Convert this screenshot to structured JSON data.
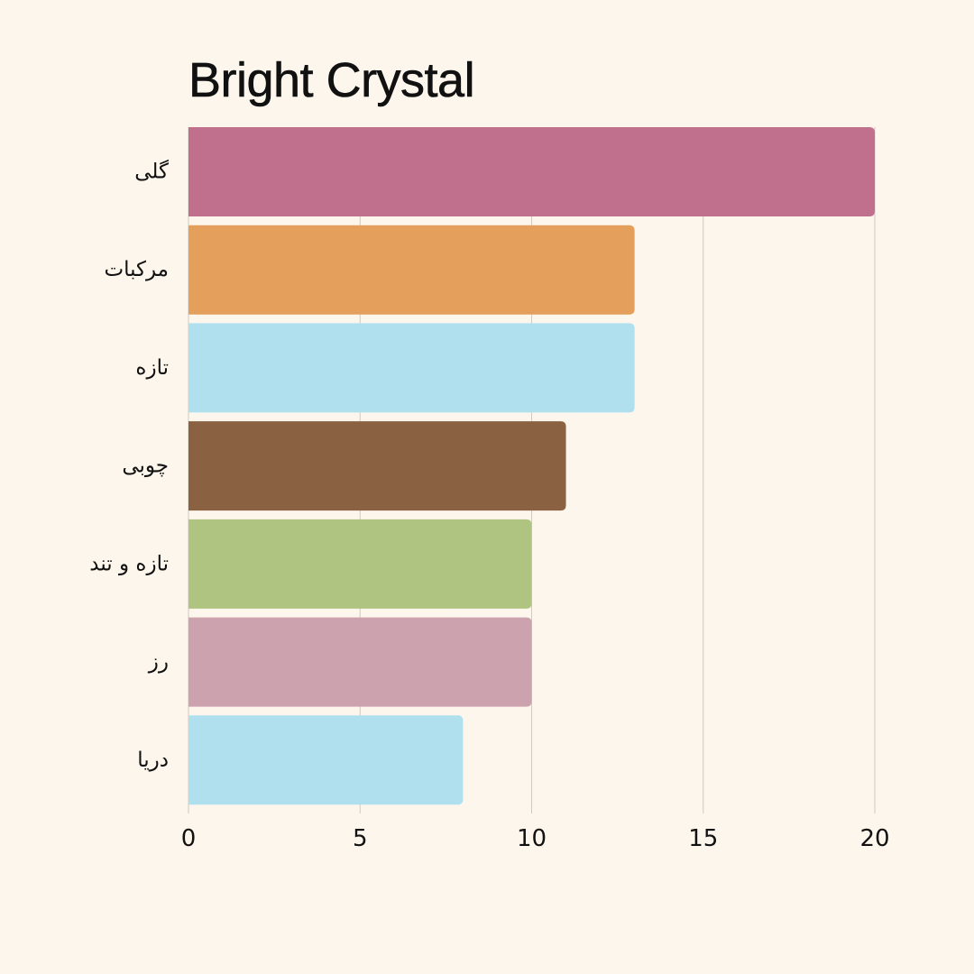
{
  "chart_data": {
    "type": "bar",
    "orientation": "horizontal",
    "title": "Bright Crystal",
    "xlabel": "",
    "ylabel": "",
    "xlim": [
      0,
      20
    ],
    "xticks": [
      0,
      5,
      10,
      15,
      20
    ],
    "grid": true,
    "categories": [
      "گلی",
      "مرکبات",
      "تازه",
      "چوبی",
      "تازه و تند",
      "رز",
      "دریا"
    ],
    "values": [
      20,
      13,
      13,
      11,
      10,
      10,
      8
    ],
    "colors": [
      "#c0708c",
      "#e59f5d",
      "#b0dfee",
      "#8a6141",
      "#b0c482",
      "#cca2ae",
      "#b0dfee"
    ]
  }
}
